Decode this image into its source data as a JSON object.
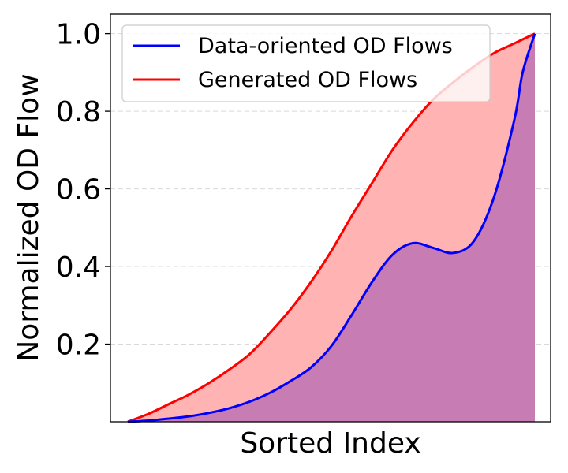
{
  "chart_data": {
    "type": "area",
    "title": "",
    "xlabel": "Sorted Index",
    "ylabel": "Normalized OD Flow",
    "xlim": [
      0,
      1
    ],
    "ylim": [
      0,
      1.05
    ],
    "y_ticks": [
      0.2,
      0.4,
      0.6,
      0.8,
      1.0
    ],
    "y_tick_labels": [
      "0.2",
      "0.4",
      "0.6",
      "0.8",
      "1.0"
    ],
    "x_ticks_shown": false,
    "grid": "horizontal dashed",
    "legend_position": "top-left",
    "series": [
      {
        "name": "Data-oriented OD Flows",
        "color": "#0000ff",
        "fill_color": "#c77cb4",
        "x": [
          0.0,
          0.05,
          0.1,
          0.15,
          0.2,
          0.25,
          0.3,
          0.35,
          0.4,
          0.45,
          0.5,
          0.55,
          0.6,
          0.65,
          0.7,
          0.75,
          0.8,
          0.85,
          0.9,
          0.95,
          0.97,
          1.0
        ],
        "values": [
          0.0,
          0.003,
          0.008,
          0.014,
          0.023,
          0.035,
          0.052,
          0.075,
          0.105,
          0.14,
          0.195,
          0.275,
          0.36,
          0.43,
          0.46,
          0.448,
          0.435,
          0.465,
          0.58,
          0.78,
          0.9,
          1.0
        ]
      },
      {
        "name": "Generated OD Flows",
        "color": "#ff0000",
        "fill_color": "#ffb3b3",
        "x": [
          0.0,
          0.05,
          0.1,
          0.15,
          0.2,
          0.25,
          0.3,
          0.35,
          0.4,
          0.45,
          0.5,
          0.55,
          0.6,
          0.65,
          0.7,
          0.75,
          0.8,
          0.85,
          0.9,
          0.95,
          1.0
        ],
        "values": [
          0.0,
          0.02,
          0.045,
          0.07,
          0.1,
          0.135,
          0.175,
          0.23,
          0.29,
          0.36,
          0.44,
          0.53,
          0.615,
          0.7,
          0.77,
          0.83,
          0.875,
          0.915,
          0.95,
          0.975,
          1.0
        ]
      }
    ]
  }
}
